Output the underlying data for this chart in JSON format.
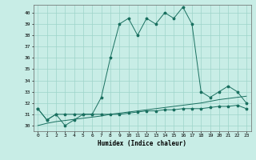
{
  "xlabel": "Humidex (Indice chaleur)",
  "x": [
    0,
    1,
    2,
    3,
    4,
    5,
    6,
    7,
    8,
    9,
    10,
    11,
    12,
    13,
    14,
    15,
    16,
    17,
    18,
    19,
    20,
    21,
    22,
    23
  ],
  "y_main": [
    31.5,
    30.5,
    31.0,
    30.0,
    30.5,
    31.0,
    31.0,
    32.5,
    36.0,
    39.0,
    39.5,
    38.0,
    39.5,
    39.0,
    40.0,
    39.5,
    40.5,
    39.0,
    33.0,
    32.5,
    33.0,
    33.5,
    33.0,
    32.0
  ],
  "y_flat": [
    31.5,
    30.5,
    31.0,
    31.0,
    31.0,
    31.0,
    31.0,
    31.0,
    31.0,
    31.0,
    31.1,
    31.2,
    31.3,
    31.3,
    31.4,
    31.4,
    31.5,
    31.5,
    31.5,
    31.6,
    31.7,
    31.7,
    31.8,
    31.5
  ],
  "y_trend": [
    30.0,
    30.2,
    30.35,
    30.45,
    30.55,
    30.65,
    30.75,
    30.85,
    31.0,
    31.1,
    31.2,
    31.3,
    31.4,
    31.5,
    31.6,
    31.7,
    31.8,
    31.9,
    32.0,
    32.15,
    32.3,
    32.4,
    32.5,
    32.6
  ],
  "ylim": [
    29.5,
    40.7
  ],
  "yticks": [
    30,
    31,
    32,
    33,
    34,
    35,
    36,
    37,
    38,
    39,
    40
  ],
  "line_color": "#1a7060",
  "bg_color": "#c8ede6",
  "grid_color": "#9dd4ca"
}
